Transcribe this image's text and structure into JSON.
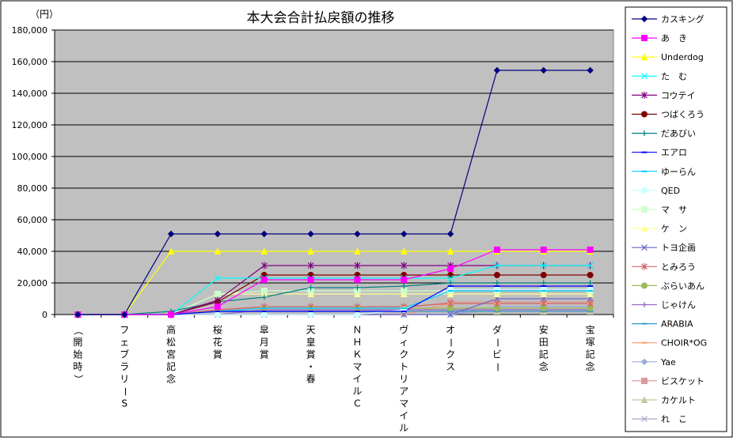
{
  "chart_data": {
    "type": "line",
    "title": "本大会合計払戻額の推移",
    "ylabel": "（円）",
    "ylim": [
      0,
      180000
    ],
    "yticks": [
      0,
      20000,
      40000,
      60000,
      80000,
      100000,
      120000,
      140000,
      160000,
      180000
    ],
    "ytick_labels": [
      "0",
      "20,000",
      "40,000",
      "60,000",
      "80,000",
      "100,000",
      "120,000",
      "140,000",
      "160,000",
      "180,000"
    ],
    "categories": [
      "（開始時）",
      "フェブラリーS",
      "高松宮記念",
      "桜花賞",
      "皐月賞",
      "天皇賞・春",
      "ＮＨＫマイルＣ",
      "ヴィクトリアマイル",
      "オークス",
      "ダービー",
      "安田記念",
      "宝塚記念"
    ],
    "grid": true,
    "legend_position": "right",
    "plot_background": "#c0c0c0",
    "series": [
      {
        "name": "カスキング",
        "color": "#000080",
        "marker": "diamond",
        "values": [
          0,
          0,
          51000,
          51000,
          51000,
          51000,
          51000,
          51000,
          51000,
          154500,
          154500,
          154500
        ]
      },
      {
        "name": "あ　き",
        "color": "#ff00ff",
        "marker": "square",
        "values": [
          0,
          0,
          0,
          5000,
          22000,
          22000,
          22000,
          22000,
          29000,
          41000,
          41000,
          41000
        ]
      },
      {
        "name": "Underdog",
        "color": "#ffff00",
        "marker": "triangle",
        "values": [
          0,
          0,
          40000,
          40000,
          40000,
          40000,
          40000,
          40000,
          40000,
          40000,
          40000,
          40000
        ]
      },
      {
        "name": "た　む",
        "color": "#00ffff",
        "marker": "x",
        "values": [
          0,
          0,
          0,
          23000,
          23000,
          23000,
          23000,
          23000,
          23000,
          31000,
          31000,
          31000
        ]
      },
      {
        "name": "コウテイ",
        "color": "#800080",
        "marker": "star",
        "values": [
          0,
          0,
          0,
          9000,
          31000,
          31000,
          31000,
          31000,
          31000,
          31000,
          31000,
          31000
        ]
      },
      {
        "name": "つばくろう",
        "color": "#800000",
        "marker": "circle",
        "values": [
          0,
          0,
          0,
          8000,
          25000,
          25000,
          25000,
          25000,
          25000,
          25000,
          25000,
          25000
        ]
      },
      {
        "name": "だあびい",
        "color": "#008080",
        "marker": "plus",
        "values": [
          0,
          0,
          2000,
          8000,
          11000,
          17000,
          17000,
          18000,
          20000,
          20000,
          20000,
          20000
        ]
      },
      {
        "name": "エアロ",
        "color": "#0000ff",
        "marker": "dash",
        "values": [
          0,
          0,
          0,
          2000,
          2000,
          2000,
          2000,
          2000,
          18000,
          18000,
          18000,
          18000
        ]
      },
      {
        "name": "ゆーらん",
        "color": "#00ccff",
        "marker": "dash",
        "values": [
          0,
          0,
          0,
          2000,
          4000,
          4000,
          4000,
          4000,
          15000,
          15000,
          15000,
          15000
        ]
      },
      {
        "name": "QED",
        "color": "#ccffff",
        "marker": "circle",
        "values": [
          0,
          0,
          0,
          0,
          0,
          0,
          0,
          3000,
          16000,
          16000,
          16000,
          16000
        ]
      },
      {
        "name": "マ　サ",
        "color": "#ccffcc",
        "marker": "square",
        "values": [
          0,
          0,
          0,
          13000,
          15000,
          15000,
          15000,
          15000,
          15000,
          15000,
          15000,
          15000
        ]
      },
      {
        "name": "ケ　ン",
        "color": "#ffff99",
        "marker": "triangle",
        "values": [
          0,
          0,
          0,
          13000,
          13000,
          13000,
          13000,
          13000,
          13000,
          13000,
          13000,
          13000
        ]
      },
      {
        "name": "トヨ企画",
        "color": "#6666cc",
        "marker": "x",
        "values": [
          0,
          0,
          0,
          0,
          0,
          0,
          0,
          0,
          0,
          10000,
          10000,
          10000
        ]
      },
      {
        "name": "とみろう",
        "color": "#cc6666",
        "marker": "star",
        "values": [
          0,
          0,
          0,
          3000,
          5000,
          5000,
          5000,
          5000,
          7000,
          7000,
          7000,
          7000
        ]
      },
      {
        "name": "ぶらいあん",
        "color": "#99bb55",
        "marker": "circle",
        "values": [
          0,
          0,
          0,
          2000,
          4000,
          4000,
          4000,
          4000,
          4000,
          4000,
          4000,
          4000
        ]
      },
      {
        "name": "じゃけん",
        "color": "#9966cc",
        "marker": "plus",
        "values": [
          0,
          0,
          0,
          0,
          3000,
          3000,
          3000,
          3000,
          3000,
          3000,
          3000,
          3000
        ]
      },
      {
        "name": "ARABIA",
        "color": "#3399cc",
        "marker": "dash",
        "values": [
          0,
          0,
          0,
          2000,
          2000,
          2000,
          2000,
          2000,
          2000,
          2000,
          2000,
          2000
        ]
      },
      {
        "name": "CHOIR*OG",
        "color": "#ff9966",
        "marker": "dash",
        "values": [
          0,
          0,
          0,
          0,
          0,
          0,
          0,
          0,
          7000,
          7000,
          7000,
          7000
        ]
      },
      {
        "name": "Yae",
        "color": "#99aadd",
        "marker": "diamond",
        "values": [
          0,
          0,
          0,
          0,
          0,
          0,
          0,
          0,
          0,
          5000,
          5000,
          5000
        ]
      },
      {
        "name": "ビスケット",
        "color": "#dd9999",
        "marker": "square",
        "values": [
          0,
          0,
          0,
          3000,
          4000,
          4000,
          4000,
          4000,
          8000,
          8000,
          8000,
          8000
        ]
      },
      {
        "name": "カケルト",
        "color": "#bbcc99",
        "marker": "triangle",
        "values": [
          0,
          0,
          0,
          2000,
          2000,
          2000,
          2000,
          2000,
          2000,
          2000,
          2000,
          2000
        ]
      },
      {
        "name": "れ　こ",
        "color": "#aaaacc",
        "marker": "x",
        "values": [
          0,
          0,
          0,
          0,
          0,
          0,
          0,
          0,
          0,
          3000,
          3000,
          3000
        ]
      }
    ]
  }
}
